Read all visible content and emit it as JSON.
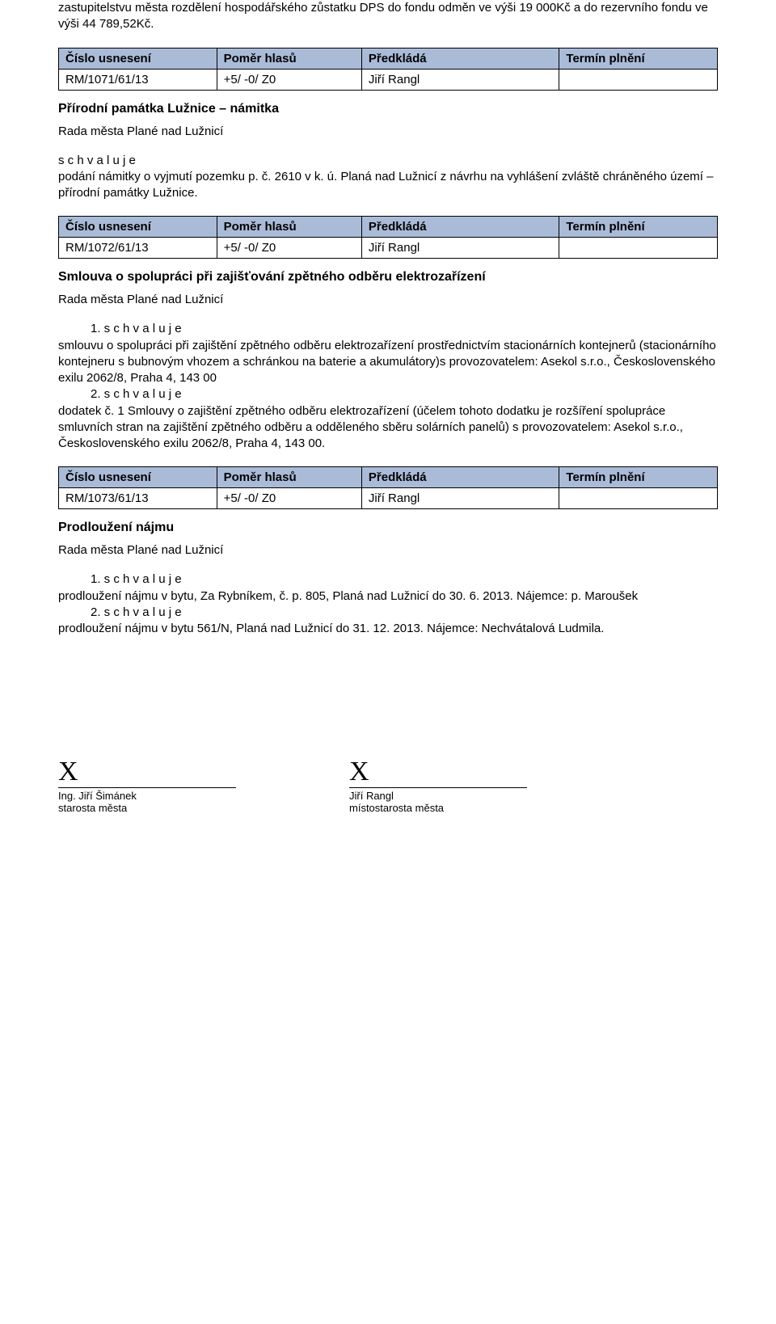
{
  "table_header": {
    "col0": "Číslo usnesení",
    "col1": "Poměr hlasů",
    "col2": "Předkládá",
    "col3": "Termín plnění"
  },
  "intro_para": "zastupitelstvu města rozdělení hospodářského zůstatku DPS do fondu odměn ve výši 19 000Kč a do rezervního fondu ve výši 44 789,52Kč.",
  "sections": [
    {
      "res_no": "RM/1071/61/13",
      "ratio": "+5/ -0/ Z0",
      "submitter": "Jiří Rangl",
      "deadline": "",
      "title": "Přírodní památka Lužnice – námitka",
      "council_line": "Rada města Plané nad Lužnicí",
      "body_before": "s c h v a l u j e",
      "body_text": "podání námitky o vyjmutí pozemku p. č. 2610 v k. ú. Planá nad Lužnicí z návrhu na vyhlášení zvláště chráněného území – přírodní památky Lužnice."
    },
    {
      "res_no": "RM/1072/61/13",
      "ratio": "+5/ -0/ Z0",
      "submitter": "Jiří Rangl",
      "deadline": "",
      "title": "Smlouva o spolupráci při zajišťování zpětného odběru elektrozařízení",
      "council_line": "Rada města Plané nad Lužnicí",
      "point1_label": "1. s c h v a l u j e",
      "point1_text": "smlouvu o spolupráci při zajištění zpětného odběru elektrozařízení prostřednictvím stacionárních kontejnerů (stacionárního kontejneru s bubnovým vhozem a schránkou na baterie a akumulátory)s provozovatelem: Asekol s.r.o., Československého exilu 2062/8, Praha 4, 143 00",
      "point2_label": "2. s c h v a l u j e",
      "point2_text": "dodatek č. 1 Smlouvy o zajištění zpětného odběru elektrozařízení (účelem tohoto dodatku je rozšíření spolupráce smluvních stran na zajištění zpětného odběru a odděleného sběru solárních panelů) s provozovatelem: Asekol s.r.o., Československého exilu 2062/8, Praha 4, 143 00."
    },
    {
      "res_no": "RM/1073/61/13",
      "ratio": "+5/ -0/ Z0",
      "submitter": "Jiří Rangl",
      "deadline": "",
      "title": "Prodloužení nájmu",
      "council_line": "Rada města Plané nad Lužnicí",
      "point1_label": "1. s c h v a l u j e",
      "point1_text": "prodloužení nájmu v bytu, Za Rybníkem, č. p. 805, Planá nad Lužnicí do 30. 6. 2013. Nájemce: p. Maroušek",
      "point2_label": "2. s c h v a l u j e",
      "point2_text": "prodloužení nájmu v bytu 561/N, Planá nad Lužnicí do 31. 12. 2013. Nájemce: Nechvátalová Ludmila."
    }
  ],
  "sig": {
    "left_x": "X",
    "left_name": "Ing. Jiří Šimánek",
    "left_role": "starosta města",
    "right_x": "X",
    "right_name": "Jiří Rangl",
    "right_role": "místostarosta města"
  }
}
